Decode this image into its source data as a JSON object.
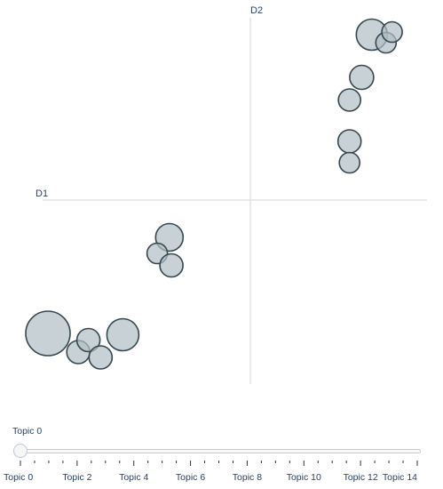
{
  "chart_data": {
    "type": "scatter",
    "xlabel": "D1",
    "ylabel": "D2",
    "colors": {
      "fill": "#B0BEC5",
      "stroke": "#37474F",
      "axis": "#e3e3e3"
    },
    "points": [
      {
        "x": -1.0,
        "y": -1.0,
        "size": 1.0
      },
      {
        "x": -0.63,
        "y": -1.01,
        "size": 0.72
      },
      {
        "x": -0.85,
        "y": -1.14,
        "size": 0.52
      },
      {
        "x": -0.8,
        "y": -1.05,
        "size": 0.52
      },
      {
        "x": -0.74,
        "y": -1.18,
        "size": 0.52
      },
      {
        "x": -0.4,
        "y": -0.28,
        "size": 0.62
      },
      {
        "x": -0.46,
        "y": -0.4,
        "size": 0.46
      },
      {
        "x": -0.39,
        "y": -0.49,
        "size": 0.52
      },
      {
        "x": 0.6,
        "y": 1.24,
        "size": 0.7
      },
      {
        "x": 0.67,
        "y": 1.18,
        "size": 0.46
      },
      {
        "x": 0.7,
        "y": 1.26,
        "size": 0.46
      },
      {
        "x": 0.55,
        "y": 0.92,
        "size": 0.54
      },
      {
        "x": 0.49,
        "y": 0.75,
        "size": 0.5
      },
      {
        "x": 0.49,
        "y": 0.44,
        "size": 0.52
      },
      {
        "x": 0.49,
        "y": 0.28,
        "size": 0.46
      }
    ]
  },
  "slider": {
    "current_label": "Topic 0",
    "value": 0,
    "min": 0,
    "max": 14,
    "tick_labels": [
      "Topic 0",
      "Topic 2",
      "Topic 4",
      "Topic 6",
      "Topic 8",
      "Topic 10",
      "Topic 12",
      "Topic 14"
    ]
  }
}
